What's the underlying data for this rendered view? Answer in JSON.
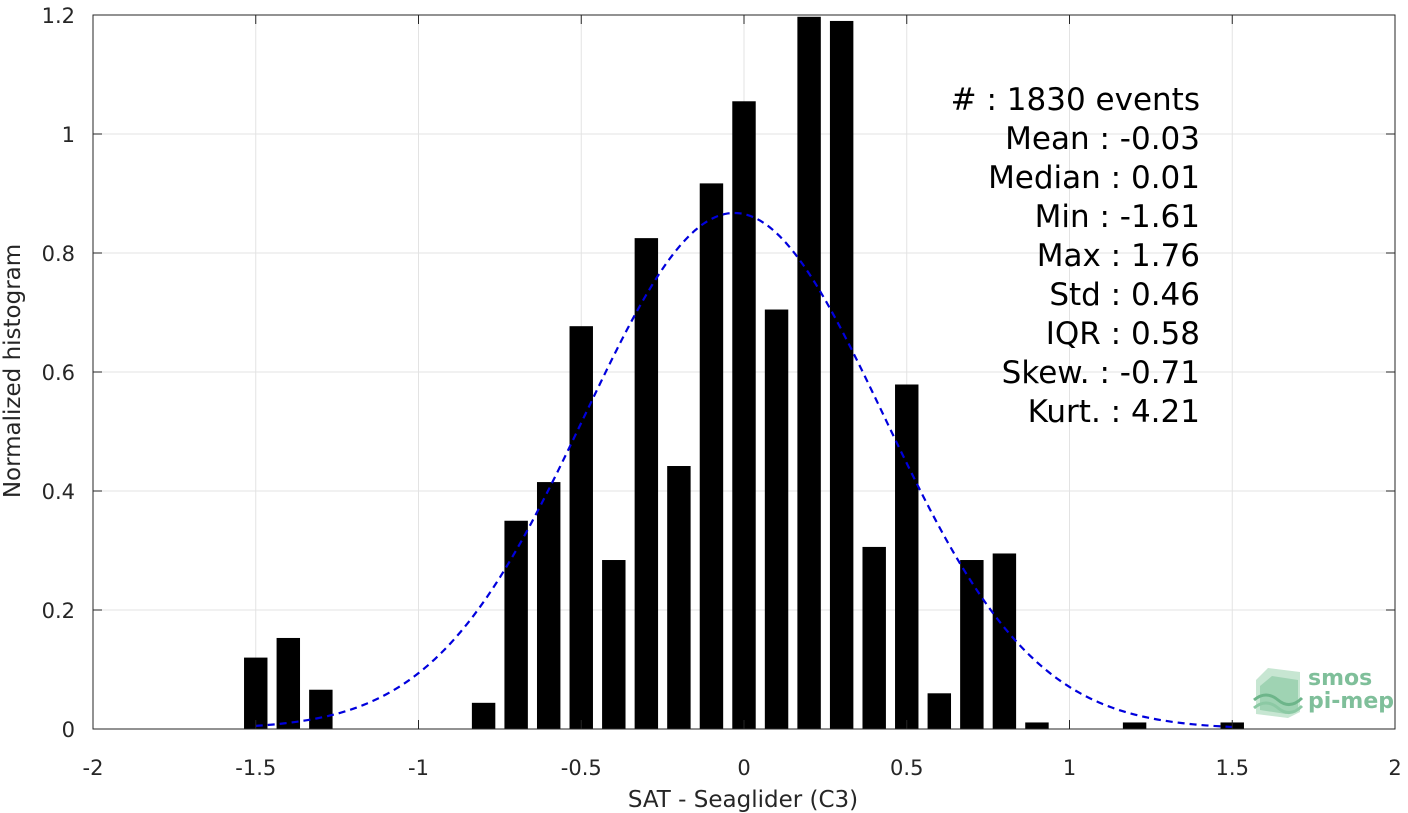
{
  "chart_data": {
    "type": "bar",
    "xlabel": "SAT - Seaglider (C3)",
    "ylabel": "Normalized histogram",
    "xlim": [
      -2,
      2
    ],
    "ylim": [
      0,
      1.2
    ],
    "xticks": [
      -2,
      -1.5,
      -1,
      -0.5,
      0,
      0.5,
      1,
      1.5,
      2
    ],
    "xtick_labels": [
      "-2",
      "-1.5",
      "-1",
      "-0.5",
      "0",
      "0.5",
      "1",
      "1.5",
      "2"
    ],
    "yticks": [
      0,
      0.2,
      0.4,
      0.6,
      0.8,
      1,
      1.2
    ],
    "ytick_labels": [
      "0",
      "0.2",
      "0.4",
      "0.6",
      "0.8",
      "1",
      "1.2"
    ],
    "grid": true,
    "bin_width": 0.1,
    "x": [
      -1.5,
      -1.4,
      -1.3,
      -0.8,
      -0.7,
      -0.6,
      -0.5,
      -0.4,
      -0.3,
      -0.2,
      -0.1,
      0.0,
      0.1,
      0.2,
      0.3,
      0.4,
      0.5,
      0.6,
      0.7,
      0.8,
      0.9,
      1.2,
      1.5
    ],
    "values": [
      0.12,
      0.153,
      0.066,
      0.044,
      0.35,
      0.415,
      0.677,
      0.284,
      0.825,
      0.442,
      0.917,
      1.055,
      0.705,
      1.197,
      1.19,
      0.306,
      0.579,
      0.06,
      0.284,
      0.295,
      0.011,
      0.011,
      0.011
    ],
    "bar_color": "#000000",
    "fit_curve": {
      "style": "dashed",
      "color": "#0000dd",
      "mean": -0.03,
      "std": 0.46,
      "x_range": [
        -1.5,
        1.5
      ]
    },
    "annotation": {
      "lines": [
        "#  : 1830 events",
        "Mean : -0.03",
        "Median : 0.01",
        "Min : -1.61",
        "Max : 1.76",
        "Std : 0.46",
        "IQR : 0.58",
        "Skew. : -0.71",
        "Kurt. : 4.21"
      ],
      "position": "top-right"
    }
  },
  "logo": {
    "line1": "smos",
    "line2": "pi-mep",
    "color": "#7fbf9a"
  }
}
